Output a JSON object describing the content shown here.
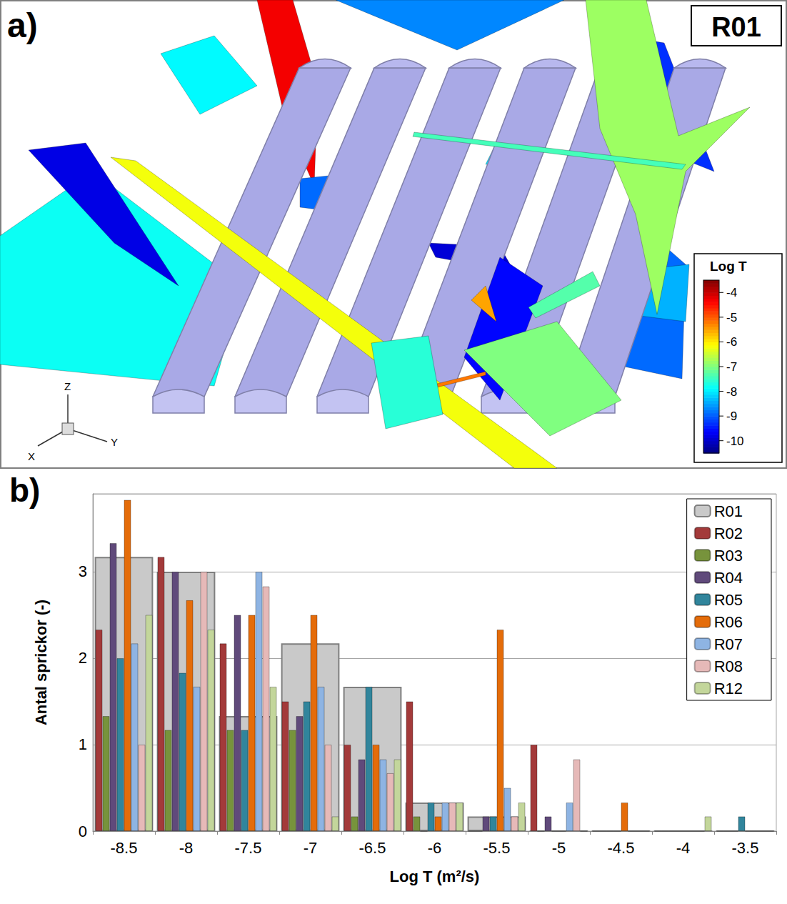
{
  "panel_a": {
    "label": "a)",
    "realization": "R01",
    "axes": [
      "X",
      "Y",
      "Z"
    ],
    "colorbar": {
      "title": "Log T",
      "range": [
        -10.5,
        -3.5
      ],
      "ticks": [
        -4,
        -5,
        -6,
        -7,
        -8,
        -9,
        -10
      ]
    },
    "fractures_log_t": [
      -4.3,
      -6.2,
      -6.8,
      -7.8,
      -9.8,
      -8.7,
      -7.9,
      -8.9,
      -9.6,
      -7.0,
      -8.1,
      -8.9,
      -7.4,
      -5.5,
      -5.2,
      -7.6,
      -9.3,
      -9.9,
      -7.3,
      -8.4
    ]
  },
  "chart_data": {
    "type": "bar",
    "title": "b)",
    "x_label": "Log T (m²/s)",
    "y_label": "Antal sprickor (-)",
    "categories": [
      "-8.5",
      "-8",
      "-7.5",
      "-7",
      "-6.5",
      "-6",
      "-5.5",
      "-5",
      "-4.5",
      "-4",
      "-3.5"
    ],
    "series": [
      {
        "name": "R01",
        "color": "#c9c9c9",
        "values": [
          3.17,
          3.0,
          1.33,
          2.17,
          1.67,
          0.33,
          0.17,
          0,
          0,
          0,
          0
        ]
      },
      {
        "name": "R02",
        "color": "#a33a3a",
        "values": [
          2.33,
          3.17,
          2.17,
          1.5,
          1.0,
          1.5,
          0,
          1.0,
          0,
          0,
          0
        ]
      },
      {
        "name": "R03",
        "color": "#77933c",
        "values": [
          1.33,
          1.17,
          1.17,
          1.17,
          0.17,
          0.17,
          0,
          0,
          0,
          0,
          0
        ]
      },
      {
        "name": "R04",
        "color": "#604a7b",
        "values": [
          3.33,
          3.0,
          2.5,
          1.33,
          0.83,
          0,
          0.17,
          0.17,
          0,
          0,
          0
        ]
      },
      {
        "name": "R05",
        "color": "#31859c",
        "values": [
          2.0,
          1.83,
          1.17,
          1.5,
          1.67,
          0.33,
          0.17,
          0,
          0,
          0,
          0.17
        ]
      },
      {
        "name": "R06",
        "color": "#e46c0a",
        "values": [
          3.83,
          2.67,
          2.5,
          2.5,
          1.0,
          0.17,
          2.33,
          0,
          0.33,
          0,
          0
        ]
      },
      {
        "name": "R07",
        "color": "#8eb4e3",
        "values": [
          2.17,
          1.67,
          3.0,
          1.67,
          0.83,
          0.33,
          0.5,
          0.33,
          0,
          0,
          0
        ]
      },
      {
        "name": "R08",
        "color": "#e6b9b8",
        "values": [
          1.0,
          3.0,
          2.83,
          1.0,
          0.67,
          0.33,
          0.17,
          0.83,
          0,
          0,
          0
        ]
      },
      {
        "name": "R12",
        "color": "#c3d69b",
        "values": [
          2.5,
          2.33,
          1.67,
          0.17,
          0.83,
          0.33,
          0.33,
          0,
          0,
          0.17,
          0
        ]
      }
    ],
    "ylim": [
      0,
      3.9
    ],
    "yticks": [
      0,
      1,
      2,
      3
    ],
    "grid": true,
    "legend": "upper right"
  }
}
